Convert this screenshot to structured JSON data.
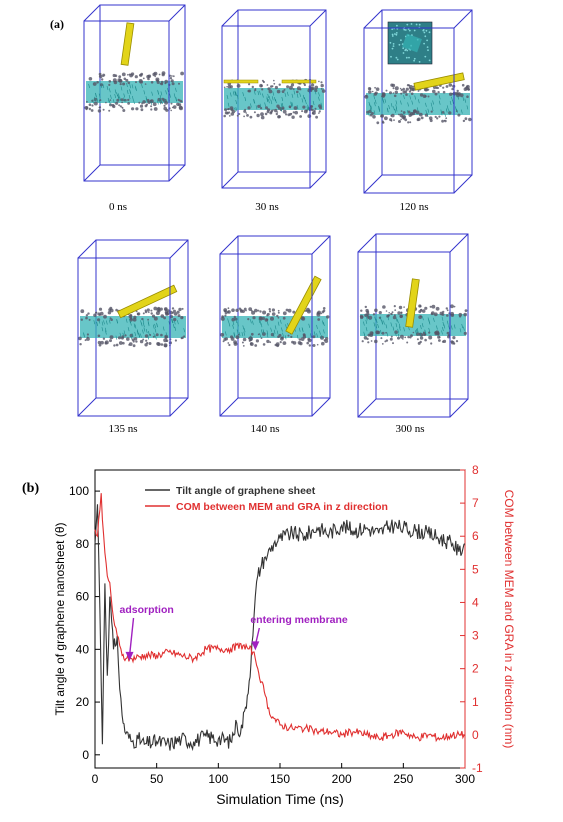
{
  "panel_a": {
    "letter": "(a)",
    "snapshots": [
      {
        "time_label": "0 ns"
      },
      {
        "time_label": "30 ns"
      },
      {
        "time_label": "120 ns"
      },
      {
        "time_label": "135 ns"
      },
      {
        "time_label": "140 ns"
      },
      {
        "time_label": "300 ns"
      }
    ],
    "colors": {
      "box": "#3333cc",
      "lipid_core": "#35b3b5",
      "headgroups": "#555566",
      "graphene": "#e2d419"
    }
  },
  "panel_b": {
    "letter": "(b)",
    "annotations": [
      {
        "text": "adsorption",
        "color": "#a020c0",
        "x": 28,
        "y_left": 36
      },
      {
        "text": "entering membrane",
        "color": "#a020c0",
        "x": 130,
        "y_left": 40
      }
    ]
  },
  "chart_data": {
    "type": "line",
    "xlabel": "Simulation Time (ns)",
    "ylabel_left": "Tilt angle of graphene nanosheet (θ)",
    "ylabel_right": "COM between MEM and GRA in z direction (nm)",
    "xlim": [
      0,
      300
    ],
    "ylim_left": [
      -5,
      108
    ],
    "ylim_right": [
      -1,
      8
    ],
    "xticks": [
      0,
      50,
      100,
      150,
      200,
      250,
      300
    ],
    "yticks_left": [
      0,
      20,
      40,
      60,
      80,
      100
    ],
    "yticks_right": [
      -1,
      0,
      1,
      2,
      3,
      4,
      5,
      6,
      7,
      8
    ],
    "legend_position": "top-center",
    "series": [
      {
        "name": "Tilt angle of graphene sheet",
        "axis": "left",
        "color": "#333333",
        "x": [
          0,
          2,
          4,
          6,
          8,
          10,
          12,
          15,
          18,
          20,
          22,
          25,
          30,
          35,
          40,
          50,
          60,
          70,
          80,
          90,
          100,
          110,
          115,
          118,
          122,
          125,
          128,
          130,
          132,
          135,
          138,
          140,
          145,
          150,
          160,
          170,
          180,
          190,
          200,
          210,
          220,
          230,
          240,
          250,
          260,
          270,
          280,
          290,
          295,
          300
        ],
        "values": [
          80,
          95,
          55,
          4,
          65,
          30,
          60,
          40,
          45,
          25,
          15,
          8,
          5,
          6,
          4,
          5,
          4,
          6,
          5,
          7,
          6,
          5,
          12,
          8,
          18,
          28,
          45,
          60,
          68,
          72,
          75,
          76,
          80,
          82,
          84,
          83,
          86,
          84,
          87,
          85,
          86,
          84,
          87,
          86,
          85,
          84,
          82,
          80,
          77,
          80
        ]
      },
      {
        "name": "COM between MEM and GRA in z direction",
        "axis": "right",
        "color": "#e03030",
        "x": [
          0,
          2,
          4,
          5,
          6,
          8,
          10,
          12,
          14,
          16,
          18,
          20,
          22,
          25,
          30,
          40,
          50,
          60,
          70,
          80,
          90,
          100,
          110,
          120,
          125,
          128,
          130,
          132,
          135,
          138,
          140,
          145,
          150,
          160,
          170,
          180,
          190,
          200,
          210,
          220,
          230,
          240,
          250,
          260,
          270,
          280,
          290,
          300
        ],
        "values": [
          6.2,
          6.0,
          6.8,
          7.3,
          6.5,
          5.5,
          4.8,
          4.6,
          3.8,
          3.3,
          3.0,
          2.7,
          2.4,
          2.3,
          2.3,
          2.4,
          2.4,
          2.5,
          2.4,
          2.3,
          2.6,
          2.6,
          2.6,
          2.7,
          2.6,
          2.5,
          2.3,
          2.0,
          1.6,
          1.2,
          0.8,
          0.5,
          0.3,
          0.2,
          0.2,
          0.1,
          0.1,
          0.0,
          0.1,
          0.0,
          -0.1,
          0.0,
          0.1,
          -0.1,
          0.0,
          -0.1,
          0.0,
          0.0
        ]
      }
    ]
  }
}
